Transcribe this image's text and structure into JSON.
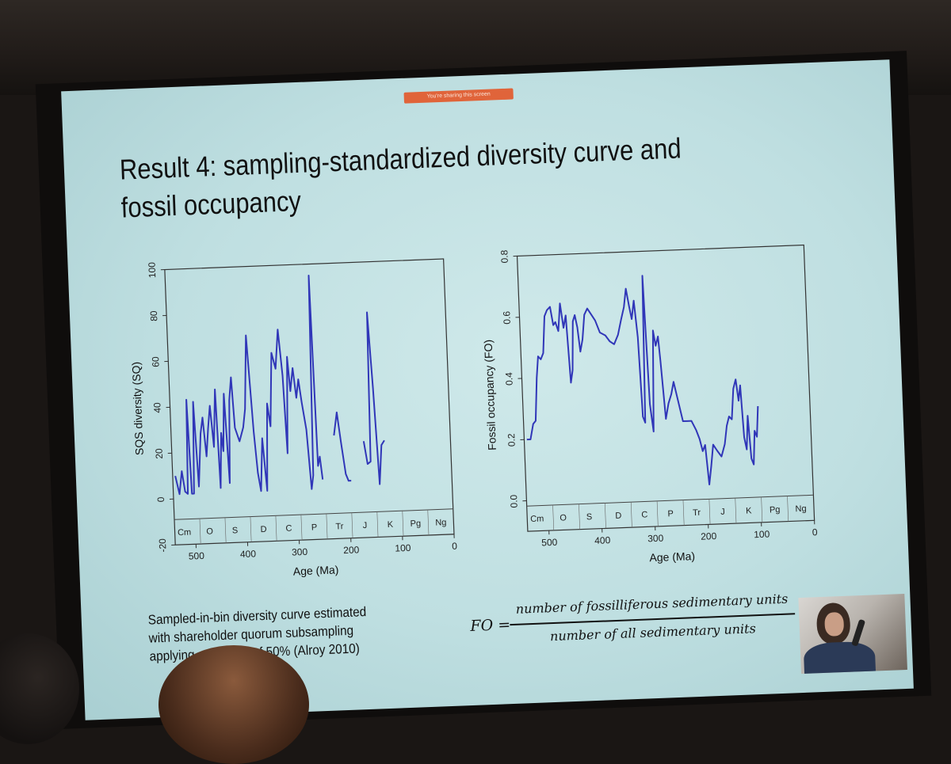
{
  "slide": {
    "share_banner": "You're sharing this screen",
    "title": "Result 4: sampling-standardized diversity curve and fossil occupancy",
    "caption_lines": [
      "Sampled-in-bin diversity curve estimated",
      "with shareholder quorum subsampling",
      "applying a quorum of 50% (Alroy 2010)"
    ],
    "formula": {
      "lhs": "FO =",
      "numerator": "number of fossilliferous sedimentary units",
      "denominator": "number of all sedimentary units"
    }
  },
  "colors": {
    "slide_background": "#c8e6e7",
    "line": "#3036b8",
    "text": "#111111"
  },
  "chart_data": [
    {
      "type": "line",
      "xlabel": "Age (Ma)",
      "ylabel": "SQS diversity (SQ)",
      "xlim": [
        540,
        0
      ],
      "ylim": [
        -20,
        100
      ],
      "x_ticks": [
        500,
        400,
        300,
        200,
        100,
        0
      ],
      "y_ticks": [
        -20,
        0,
        20,
        40,
        60,
        80,
        100
      ],
      "periods": [
        "Cm",
        "O",
        "S",
        "D",
        "C",
        "P",
        "Tr",
        "J",
        "K",
        "Pg",
        "Ng"
      ],
      "series": [
        {
          "segments": [
            [
              [
                535,
                10
              ],
              [
                528,
                2
              ],
              [
                522,
                12
              ],
              [
                517,
                3
              ],
              [
                512,
                2
              ],
              [
                508,
                43
              ],
              [
                504,
                2
              ],
              [
                500,
                2
              ],
              [
                495,
                42
              ],
              [
                490,
                5
              ],
              [
                483,
                28
              ],
              [
                478,
                35
              ],
              [
                473,
                18
              ],
              [
                468,
                30
              ],
              [
                463,
                40
              ],
              [
                458,
                22
              ],
              [
                452,
                47
              ],
              [
                448,
                4
              ],
              [
                443,
                28
              ],
              [
                440,
                20
              ],
              [
                435,
                45
              ],
              [
                430,
                6
              ],
              [
                425,
                42
              ],
              [
                420,
                52
              ],
              [
                416,
                30
              ],
              [
                408,
                24
              ],
              [
                400,
                30
              ],
              [
                395,
                38
              ],
              [
                388,
                70
              ],
              [
                380,
                28
              ],
              [
                375,
                10
              ],
              [
                370,
                2
              ],
              [
                364,
                25
              ],
              [
                358,
                2
              ],
              [
                352,
                40
              ],
              [
                347,
                30
              ],
              [
                340,
                62
              ],
              [
                333,
                55
              ],
              [
                326,
                72
              ],
              [
                320,
                52
              ],
              [
                316,
                18
              ],
              [
                310,
                60
              ],
              [
                306,
                45
              ],
              [
                300,
                55
              ],
              [
                295,
                42
              ],
              [
                290,
                50
              ],
              [
                285,
                40
              ],
              [
                278,
                28
              ],
              [
                272,
                2
              ],
              [
                268,
                8
              ],
              [
                262,
                95
              ],
              [
                258,
                12
              ],
              [
                254,
                16
              ],
              [
                250,
                6
              ]
            ],
            [
              [
                225,
                25
              ],
              [
                218,
                35
              ],
              [
                212,
                22
              ],
              [
                205,
                8
              ],
              [
                200,
                5
              ],
              [
                195,
                5
              ]
            ],
            [
              [
                168,
                22
              ],
              [
                162,
                12
              ],
              [
                156,
                13
              ],
              [
                152,
                78
              ],
              [
                146,
                45
              ],
              [
                140,
                3
              ],
              [
                134,
                20
              ],
              [
                128,
                22
              ]
            ]
          ]
        }
      ]
    },
    {
      "type": "line",
      "xlabel": "Age (Ma)",
      "ylabel": "Fossil occupancy (FO)",
      "xlim": [
        540,
        0
      ],
      "ylim": [
        -0.1,
        0.8
      ],
      "x_ticks": [
        500,
        400,
        300,
        200,
        100,
        0
      ],
      "y_ticks": [
        0.0,
        0.2,
        0.4,
        0.6,
        0.8
      ],
      "periods": [
        "Cm",
        "O",
        "S",
        "D",
        "C",
        "P",
        "Tr",
        "J",
        "K",
        "Pg",
        "Ng"
      ],
      "series": [
        {
          "segments": [
            [
              [
                535,
                0.2
              ],
              [
                528,
                0.2
              ],
              [
                522,
                0.25
              ],
              [
                517,
                0.26
              ],
              [
                512,
                0.4
              ],
              [
                508,
                0.47
              ],
              [
                503,
                0.46
              ],
              [
                498,
                0.48
              ],
              [
                493,
                0.6
              ],
              [
                488,
                0.62
              ],
              [
                482,
                0.63
              ],
              [
                477,
                0.57
              ],
              [
                473,
                0.58
              ],
              [
                468,
                0.55
              ],
              [
                463,
                0.64
              ],
              [
                458,
                0.56
              ],
              [
                453,
                0.6
              ],
              [
                448,
                0.38
              ],
              [
                444,
                0.42
              ],
              [
                440,
                0.58
              ],
              [
                436,
                0.6
              ],
              [
                432,
                0.56
              ],
              [
                428,
                0.48
              ],
              [
                423,
                0.52
              ],
              [
                418,
                0.6
              ],
              [
                412,
                0.62
              ],
              [
                405,
                0.6
              ],
              [
                398,
                0.58
              ],
              [
                390,
                0.54
              ],
              [
                380,
                0.53
              ],
              [
                372,
                0.51
              ],
              [
                364,
                0.5
              ],
              [
                356,
                0.53
              ],
              [
                349,
                0.58
              ],
              [
                343,
                0.62
              ],
              [
                338,
                0.68
              ],
              [
                333,
                0.62
              ],
              [
                329,
                0.58
              ],
              [
                324,
                0.64
              ],
              [
                319,
                0.52
              ],
              [
                315,
                0.26
              ],
              [
                311,
                0.24
              ],
              [
                306,
                0.72
              ],
              [
                301,
                0.3
              ],
              [
                296,
                0.21
              ],
              [
                290,
                0.54
              ],
              [
                286,
                0.49
              ],
              [
                281,
                0.52
              ],
              [
                278,
                0.44
              ],
              [
                272,
                0.25
              ],
              [
                266,
                0.3
              ],
              [
                260,
                0.33
              ],
              [
                255,
                0.37
              ],
              [
                248,
                0.31
              ],
              [
                240,
                0.24
              ],
              [
                232,
                0.24
              ],
              [
                224,
                0.24
              ],
              [
                216,
                0.21
              ],
              [
                210,
                0.18
              ],
              [
                205,
                0.14
              ],
              [
                200,
                0.16
              ],
              [
                195,
                0.03
              ],
              [
                190,
                0.09
              ],
              [
                185,
                0.16
              ],
              [
                178,
                0.14
              ],
              [
                170,
                0.12
              ],
              [
                163,
                0.16
              ],
              [
                158,
                0.22
              ],
              [
                153,
                0.25
              ],
              [
                148,
                0.24
              ],
              [
                143,
                0.34
              ],
              [
                138,
                0.37
              ],
              [
                134,
                0.3
              ],
              [
                130,
                0.35
              ],
              [
                126,
                0.18
              ],
              [
                122,
                0.14
              ],
              [
                118,
                0.25
              ],
              [
                114,
                0.11
              ],
              [
                110,
                0.09
              ],
              [
                106,
                0.2
              ],
              [
                102,
                0.18
              ],
              [
                98,
                0.28
              ]
            ]
          ]
        }
      ]
    }
  ]
}
